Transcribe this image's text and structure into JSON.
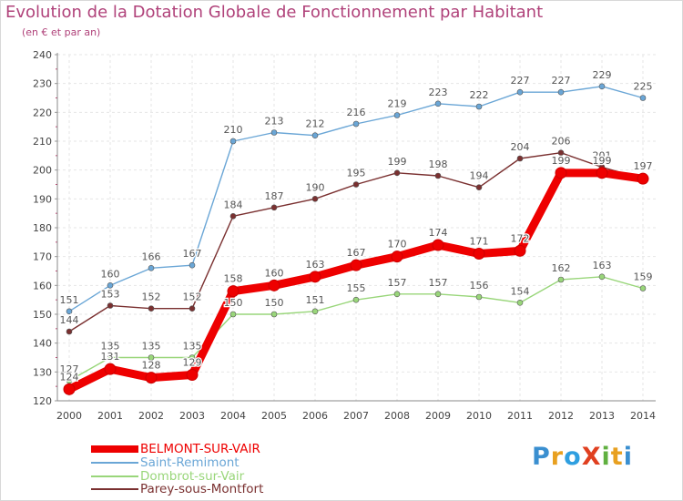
{
  "title": "Evolution de la Dotation Globale de Fonctionnement par Habitant",
  "subtitle": "(en € et par an)",
  "logo": {
    "text": "ProXiti",
    "letter_colors": [
      "#3a8fd0",
      "#e8a020",
      "#2f9fe0",
      "#e04020",
      "#60b040",
      "#e8a020",
      "#3a8fd0"
    ]
  },
  "chart_data": {
    "type": "line",
    "title": "Evolution de la Dotation Globale de Fonctionnement par Habitant",
    "ylabel": "(en € et par an)",
    "xlabel": "",
    "ylim": [
      120,
      240
    ],
    "yticks": [
      "120",
      "130",
      "140",
      "150",
      "160",
      "170",
      "180",
      "190",
      "200",
      "210",
      "220",
      "230",
      "240"
    ],
    "categories": [
      "2000",
      "2001",
      "2002",
      "2003",
      "2004",
      "2005",
      "2006",
      "2007",
      "2008",
      "2009",
      "2010",
      "2011",
      "2012",
      "2013",
      "2014"
    ],
    "grid": true,
    "series": [
      {
        "name": "BELMONT-SUR-VAIR",
        "color": "#ee0000",
        "values": [
          124,
          131,
          128,
          129,
          158,
          160,
          163,
          167,
          170,
          174,
          171,
          172,
          199,
          199,
          197
        ],
        "labels": [
          "124",
          "131",
          "128",
          "129",
          "158",
          "160",
          "163",
          "167",
          "170",
          "174",
          "171",
          "172",
          "199",
          "199",
          "197"
        ]
      },
      {
        "name": "Saint-Remimont",
        "color": "#6aa6d6",
        "values": [
          151,
          160,
          166,
          167,
          210,
          213,
          212,
          216,
          219,
          223,
          222,
          227,
          227,
          229,
          225
        ],
        "labels": [
          "151",
          "160",
          "166",
          "167",
          "210",
          "213",
          "212",
          "216",
          "219",
          "223",
          "222",
          "227",
          "227",
          "229",
          "225"
        ]
      },
      {
        "name": "Dombrot-sur-Vair",
        "color": "#99d67a",
        "values": [
          127,
          135,
          135,
          135,
          150,
          150,
          151,
          155,
          157,
          157,
          156,
          154,
          162,
          163,
          159
        ],
        "labels": [
          "127",
          "135",
          "135",
          "135",
          "150",
          "150",
          "151",
          "155",
          "157",
          "157",
          "156",
          "154",
          "162",
          "163",
          "159"
        ]
      },
      {
        "name": "Parey-sous-Montfort",
        "color": "#7a3030",
        "values": [
          144,
          153,
          152,
          152,
          184,
          187,
          190,
          195,
          199,
          198,
          194,
          204,
          206,
          201,
          197
        ],
        "labels": [
          "144",
          "153",
          "152",
          "152",
          "184",
          "187",
          "190",
          "195",
          "199",
          "198",
          "194",
          "204",
          "206",
          "201",
          "197"
        ]
      }
    ]
  }
}
